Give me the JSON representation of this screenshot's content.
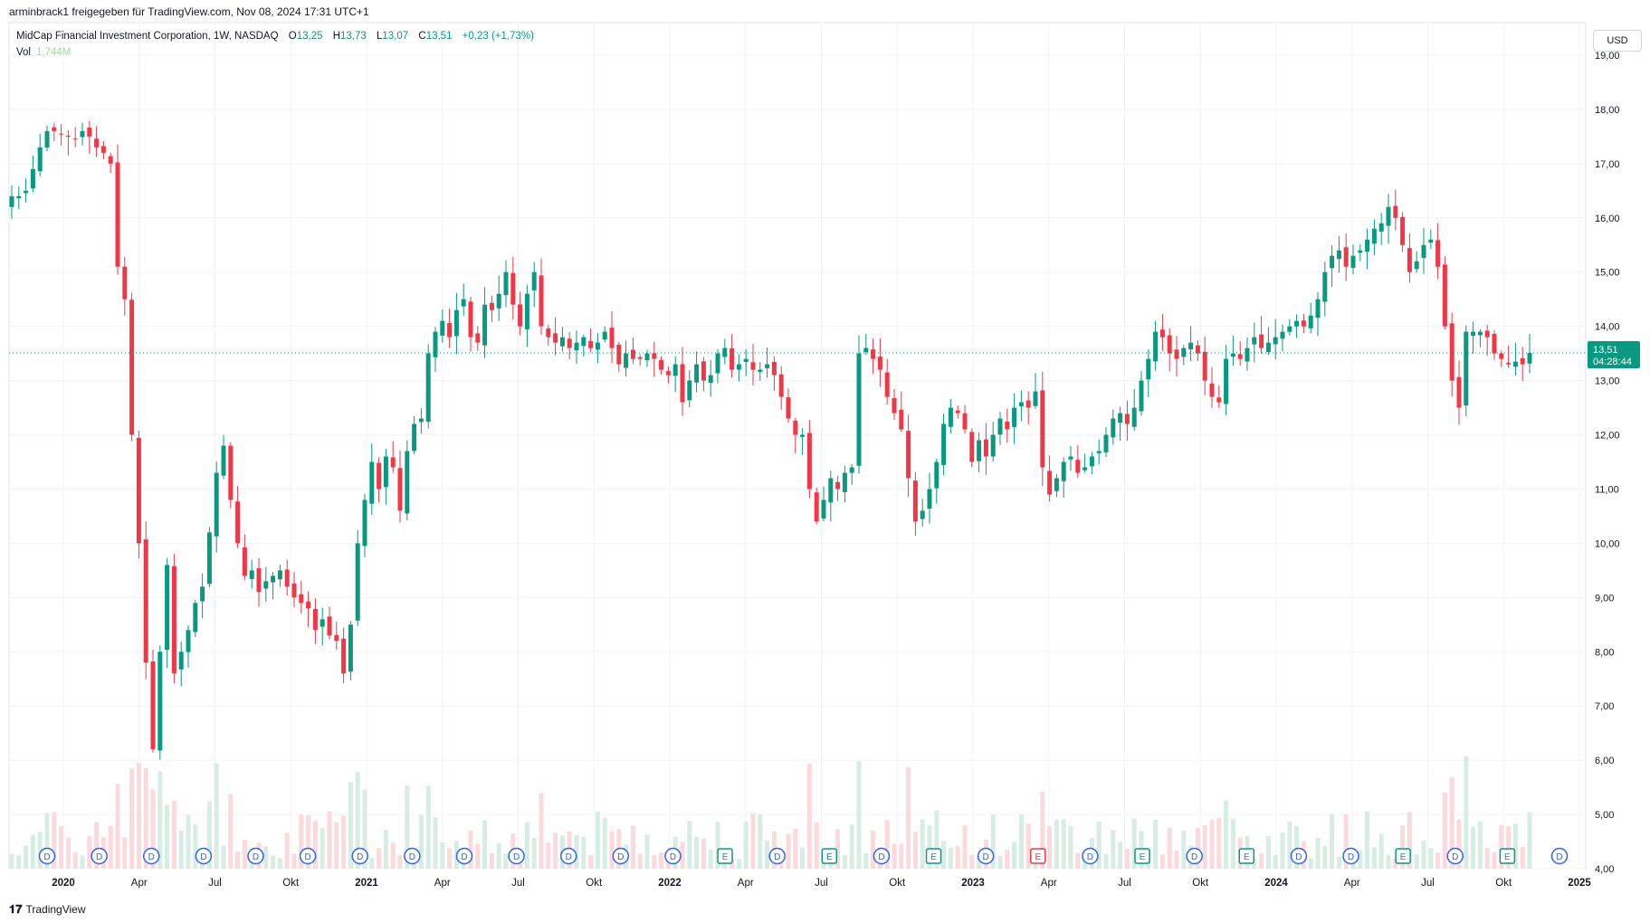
{
  "header": {
    "attribution": "arminbrack1 freigegeben für TradingView.com, Nov 08, 2024 17:31 UTC+1"
  },
  "legend": {
    "symbol": "MidCap Financial Investment Corporation, 1W, NASDAQ",
    "open_label": "O",
    "open": "13,25",
    "high_label": "H",
    "high": "13,73",
    "low_label": "L",
    "low": "13,07",
    "close_label": "C",
    "close": "13,51",
    "change": "+0,23 (+1,73%)",
    "vol_label": "Vol",
    "vol_value": "1,744M"
  },
  "currency": "USD",
  "price_tag": {
    "price": "13,51",
    "countdown": "04:28:44"
  },
  "footer": {
    "brand": "TradingView"
  },
  "colors": {
    "up": "#089981",
    "down": "#f23645",
    "vol_up": "#d7ece3",
    "vol_down": "#fbd9dc",
    "dividend": "#2962ff",
    "earnings_up": "#089981",
    "earnings_down": "#f23645",
    "grid": "#f0f3fa"
  },
  "chart_data": {
    "type": "candlestick",
    "title": "MidCap Financial Investment Corporation, 1W, NASDAQ",
    "ylim": [
      4,
      19.6
    ],
    "y_ticks": [
      "19,00",
      "18,00",
      "17,00",
      "16,00",
      "15,00",
      "14,00",
      "13,00",
      "12,00",
      "11,00",
      "10,00",
      "9,00",
      "8,00",
      "7,00",
      "6,00",
      "5,00",
      "4,00"
    ],
    "x_ticks": [
      "2020",
      "Apr",
      "Jul",
      "Okt",
      "2021",
      "Apr",
      "Jul",
      "Okt",
      "2022",
      "Apr",
      "Jul",
      "Okt",
      "2023",
      "Apr",
      "Jul",
      "Okt",
      "2024",
      "Apr",
      "Jul",
      "Okt",
      "2025"
    ],
    "close_path_weekly": [
      16.4,
      16.4,
      16.5,
      16.9,
      17.3,
      17.6,
      17.6,
      17.55,
      17.5,
      17.45,
      17.6,
      17.5,
      17.3,
      17.2,
      17.0,
      15.1,
      14.5,
      12.0,
      10.0,
      7.8,
      6.2,
      8.0,
      9.6,
      7.6,
      8.0,
      8.4,
      8.9,
      9.2,
      10.2,
      11.3,
      11.8,
      10.8,
      10.0,
      9.4,
      9.5,
      9.1,
      9.3,
      9.4,
      9.5,
      9.2,
      9.0,
      8.9,
      8.8,
      8.4,
      8.6,
      8.3,
      8.2,
      7.6,
      8.5,
      10.0,
      10.8,
      11.5,
      11.0,
      11.6,
      11.4,
      10.6,
      11.7,
      12.2,
      12.3,
      13.5,
      13.9,
      14.1,
      13.8,
      14.3,
      14.5,
      13.8,
      13.7,
      14.4,
      14.3,
      14.6,
      15.0,
      14.4,
      14.0,
      14.6,
      15.0,
      14.0,
      13.8,
      13.7,
      13.8,
      13.6,
      13.7,
      13.8,
      13.6,
      13.7,
      13.9,
      13.6,
      13.3,
      13.5,
      13.4,
      13.4,
      13.5,
      13.4,
      13.2,
      13.1,
      13.3,
      12.6,
      13.0,
      13.3,
      13.0,
      13.1,
      13.5,
      13.6,
      13.2,
      13.3,
      13.4,
      13.2,
      13.2,
      13.3,
      13.1,
      12.7,
      12.3,
      12.0,
      12.0,
      11.0,
      10.4,
      10.8,
      11.2,
      11.0,
      11.3,
      11.4,
      13.5,
      13.6,
      13.4,
      13.2,
      12.7,
      12.4,
      12.1,
      11.2,
      10.4,
      10.6,
      11.0,
      11.5,
      12.2,
      12.5,
      12.4,
      12.1,
      11.5,
      11.9,
      11.6,
      12.0,
      12.3,
      12.1,
      12.5,
      12.6,
      12.5,
      12.8,
      11.4,
      10.9,
      11.2,
      11.5,
      11.6,
      11.3,
      11.4,
      11.6,
      11.7,
      12.0,
      12.3,
      12.4,
      12.2,
      12.5,
      13.0,
      13.4,
      13.9,
      13.8,
      13.5,
      13.4,
      13.6,
      13.7,
      13.5,
      13.0,
      12.7,
      12.6,
      13.4,
      13.5,
      13.4,
      13.6,
      13.8,
      13.6,
      13.7,
      13.8,
      13.9,
      14.0,
      14.1,
      14.0,
      14.2,
      14.5,
      15.0,
      15.3,
      15.4,
      15.1,
      15.3,
      15.4,
      15.6,
      15.8,
      15.9,
      16.2,
      16.0,
      15.5,
      15.0,
      15.2,
      15.5,
      15.6,
      15.1,
      14.0,
      13.0,
      12.5,
      13.9,
      13.9,
      13.9,
      13.8,
      13.5,
      13.4,
      13.3,
      13.35,
      13.3,
      13.51
    ]
  },
  "event_markers": [
    {
      "label": "D",
      "kind": "dividend"
    },
    {
      "label": "D",
      "kind": "dividend"
    },
    {
      "label": "D",
      "kind": "dividend"
    },
    {
      "label": "D",
      "kind": "dividend"
    },
    {
      "label": "D",
      "kind": "dividend"
    },
    {
      "label": "D",
      "kind": "dividend"
    },
    {
      "label": "D",
      "kind": "dividend"
    },
    {
      "label": "D",
      "kind": "dividend"
    },
    {
      "label": "D",
      "kind": "dividend"
    },
    {
      "label": "D",
      "kind": "dividend"
    },
    {
      "label": "D",
      "kind": "dividend"
    },
    {
      "label": "D",
      "kind": "dividend"
    },
    {
      "label": "D",
      "kind": "dividend"
    },
    {
      "label": "E",
      "kind": "earnings-up"
    },
    {
      "label": "D",
      "kind": "dividend"
    },
    {
      "label": "E",
      "kind": "earnings-up"
    },
    {
      "label": "D",
      "kind": "dividend"
    },
    {
      "label": "E",
      "kind": "earnings-up"
    },
    {
      "label": "D",
      "kind": "dividend"
    },
    {
      "label": "E",
      "kind": "earnings-down"
    },
    {
      "label": "D",
      "kind": "dividend"
    },
    {
      "label": "E",
      "kind": "earnings-up"
    },
    {
      "label": "D",
      "kind": "dividend"
    },
    {
      "label": "E",
      "kind": "earnings-up"
    },
    {
      "label": "D",
      "kind": "dividend"
    },
    {
      "label": "D",
      "kind": "dividend"
    },
    {
      "label": "E",
      "kind": "earnings-up"
    },
    {
      "label": "D",
      "kind": "dividend"
    },
    {
      "label": "E",
      "kind": "earnings-up"
    },
    {
      "label": "D",
      "kind": "dividend"
    }
  ]
}
